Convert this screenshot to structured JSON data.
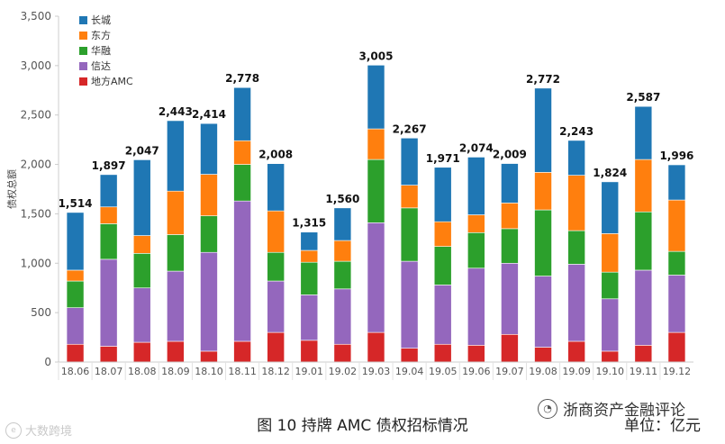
{
  "chart_data": {
    "type": "bar",
    "stacked": true,
    "ylabel": "债权总额",
    "ylim": [
      0,
      3500
    ],
    "yticks": [
      0,
      500,
      1000,
      1500,
      2000,
      2500,
      3000,
      3500
    ],
    "ytick_labels": [
      "0",
      "500",
      "1,000",
      "1,500",
      "2,000",
      "2,500",
      "3,000",
      "3,500"
    ],
    "categories": [
      "18.06",
      "18.07",
      "18.08",
      "18.09",
      "18.10",
      "18.11",
      "18.12",
      "19.01",
      "19.02",
      "19.03",
      "19.04",
      "19.05",
      "19.06",
      "19.07",
      "19.08",
      "19.09",
      "19.10",
      "19.11",
      "19.12"
    ],
    "totals": [
      1514,
      1897,
      2047,
      2443,
      2414,
      2778,
      2008,
      1315,
      1560,
      3005,
      2267,
      1971,
      2074,
      2009,
      2772,
      2243,
      1824,
      2587,
      1996
    ],
    "total_labels": [
      "1,514",
      "1,897",
      "2,047",
      "2,443",
      "2,414",
      "2,778",
      "2,008",
      "1,315",
      "1,560",
      "3,005",
      "2,267",
      "1,971",
      "2,074",
      "2,009",
      "2,772",
      "2,243",
      "1,824",
      "2,587",
      "1,996"
    ],
    "series": [
      {
        "name": "地方AMC",
        "color": "#d62728",
        "values": [
          180,
          160,
          200,
          210,
          110,
          210,
          300,
          220,
          180,
          300,
          140,
          180,
          170,
          280,
          150,
          210,
          110,
          170,
          300
        ]
      },
      {
        "name": "信达",
        "color": "#9467bd",
        "values": [
          370,
          880,
          550,
          710,
          1000,
          1420,
          520,
          460,
          560,
          1110,
          880,
          600,
          780,
          720,
          720,
          780,
          530,
          760,
          580
        ]
      },
      {
        "name": "华融",
        "color": "#2ca02c",
        "values": [
          270,
          360,
          350,
          370,
          370,
          370,
          290,
          330,
          280,
          640,
          540,
          390,
          360,
          350,
          670,
          340,
          270,
          590,
          240
        ]
      },
      {
        "name": "东方",
        "color": "#ff7f0e",
        "values": [
          110,
          170,
          180,
          440,
          420,
          240,
          420,
          120,
          210,
          310,
          230,
          250,
          180,
          260,
          380,
          560,
          390,
          530,
          520
        ]
      },
      {
        "name": "长城",
        "color": "#1f77b4",
        "values": [
          584,
          327,
          767,
          713,
          514,
          538,
          478,
          185,
          330,
          645,
          477,
          551,
          584,
          399,
          852,
          353,
          524,
          537,
          356
        ]
      }
    ],
    "legend_order": [
      "长城",
      "东方",
      "华融",
      "信达",
      "地方AMC"
    ],
    "legend_position": "top-left",
    "caption": "图 10  持牌 AMC 债权招标情况",
    "unit": "单位：亿元"
  },
  "brand": {
    "name": "浙商资产金融评论",
    "icon": "wechat-icon",
    "icon_glyph": "◔"
  },
  "watermark": {
    "text": "大数跨境",
    "icon": "globe-icon",
    "icon_glyph": "e"
  }
}
